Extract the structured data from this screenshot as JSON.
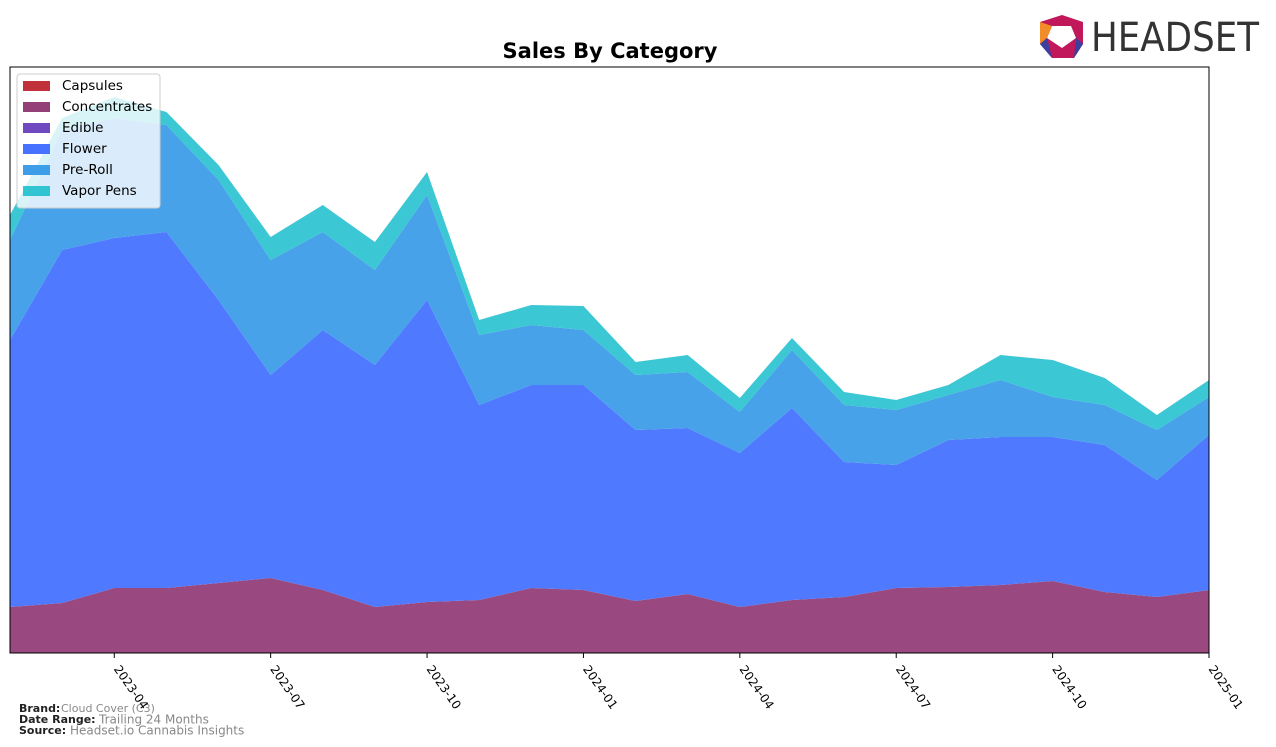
{
  "chart_data": {
    "type": "stacked_area",
    "title": "Sales By Category",
    "x": [
      "2023-02",
      "2023-03",
      "2023-04",
      "2023-05",
      "2023-06",
      "2023-07",
      "2023-08",
      "2023-09",
      "2023-10",
      "2023-11",
      "2023-12",
      "2024-01",
      "2024-02",
      "2024-03",
      "2024-04",
      "2024-05",
      "2024-06",
      "2024-07",
      "2024-08",
      "2024-09",
      "2024-10",
      "2024-11",
      "2024-12",
      "2025-01"
    ],
    "xticks": [
      "2023-04",
      "2023-07",
      "2023-10",
      "2024-01",
      "2024-04",
      "2024-07",
      "2024-10",
      "2025-01"
    ],
    "xlim": [
      "2023-02",
      "2025-01"
    ],
    "ylim": [
      0,
      586
    ],
    "legend": "upper left",
    "series": [
      {
        "name": "Capsules",
        "color": "#c0313a",
        "values": [
          0,
          0,
          0,
          0,
          0,
          0,
          0,
          0,
          0,
          0,
          0,
          0,
          0,
          0,
          0,
          0,
          0,
          0,
          0,
          0,
          0,
          0,
          0,
          0
        ]
      },
      {
        "name": "Concentrates",
        "color": "#933f78",
        "values": [
          46,
          50,
          65,
          65,
          70,
          75,
          63,
          46,
          51,
          53,
          65,
          63,
          52,
          59,
          46,
          53,
          56,
          65,
          66,
          68,
          72,
          61,
          56,
          63
        ]
      },
      {
        "name": "Edible",
        "color": "#7048c0",
        "values": [
          0,
          0,
          0,
          0,
          0,
          0,
          0,
          0,
          0,
          0,
          0,
          0,
          0,
          0,
          0,
          0,
          0,
          0,
          0,
          0,
          0,
          0,
          0,
          0
        ]
      },
      {
        "name": "Flower",
        "color": "#4672ff",
        "values": [
          267,
          353,
          350,
          356,
          283,
          203,
          260,
          242,
          302,
          195,
          203,
          205,
          171,
          166,
          154,
          192,
          135,
          123,
          147,
          148,
          144,
          147,
          117,
          155
        ]
      },
      {
        "name": "Pre-Roll",
        "color": "#3e9de8",
        "values": [
          100,
          120,
          120,
          107,
          120,
          115,
          98,
          95,
          105,
          70,
          60,
          55,
          55,
          56,
          41,
          58,
          57,
          55,
          45,
          57,
          40,
          40,
          50,
          38
        ]
      },
      {
        "name": "Vapor Pens",
        "color": "#31c4d2",
        "values": [
          25,
          12,
          21,
          13,
          15,
          23,
          27,
          28,
          23,
          15,
          20,
          24,
          13,
          17,
          14,
          12,
          13,
          10,
          10,
          25,
          37,
          27,
          15,
          17
        ]
      }
    ]
  },
  "logo": {
    "text": "HEADSET"
  },
  "footer": {
    "brand_label": "Brand:",
    "brand": "Cloud Cover (C3)",
    "range_label": "Date Range:",
    "range": "Trailing 24 Months",
    "source_label": "Source:",
    "source": "Headset.io Cannabis Insights"
  }
}
